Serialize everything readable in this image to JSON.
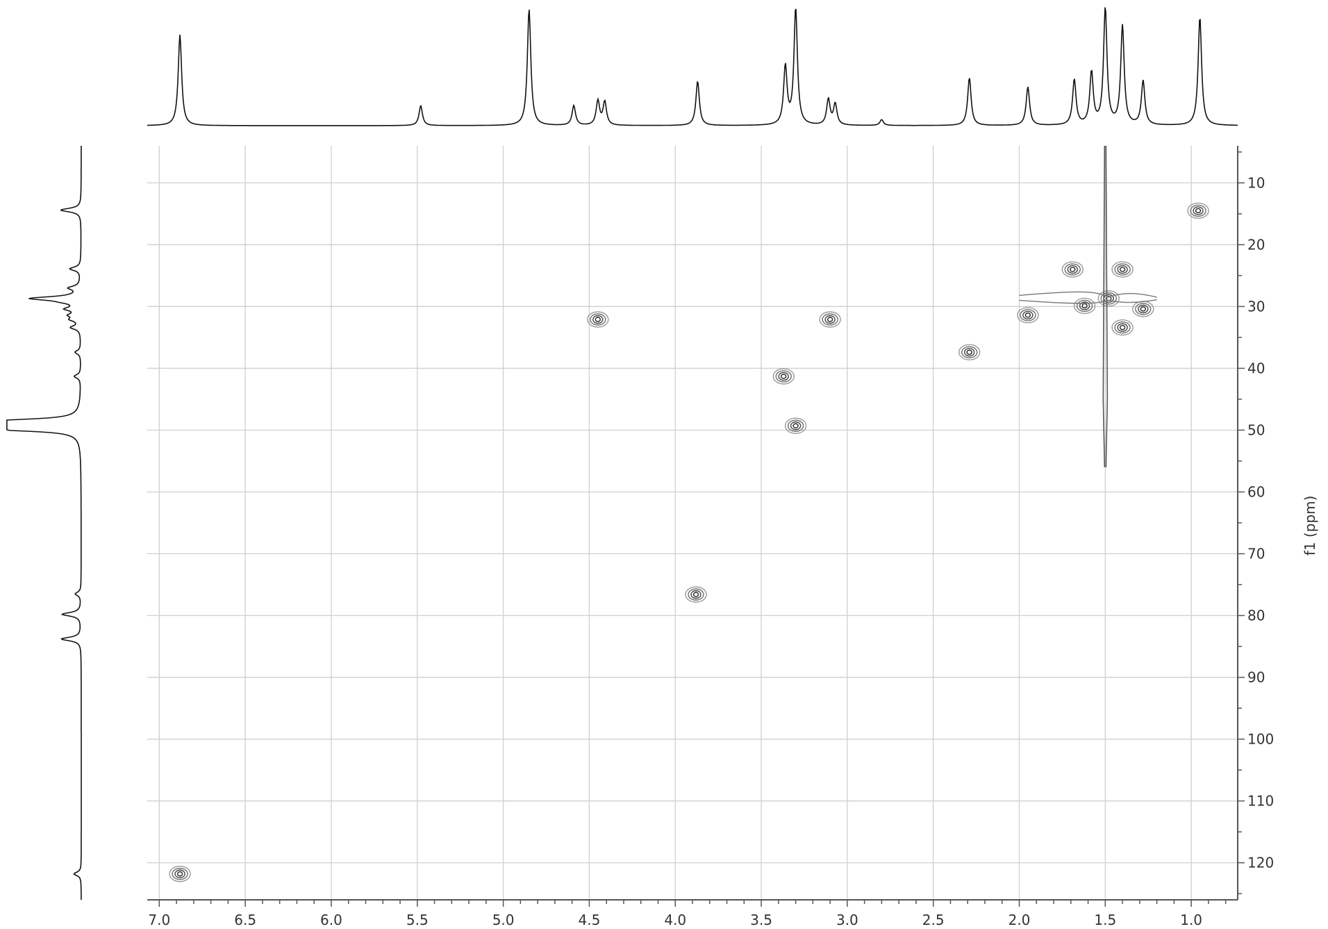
{
  "chart_data": {
    "type": "2D NMR contour (HSQC)",
    "xlabel": "",
    "ylabel": "f1 (ppm)",
    "x_axis": {
      "reversed": true,
      "range": [
        7.07,
        0.73
      ],
      "ticks": [
        7.0,
        6.5,
        6.0,
        5.5,
        5.0,
        4.5,
        4.0,
        3.5,
        3.0,
        2.5,
        2.0,
        1.5,
        1.0
      ],
      "tick_labels": [
        "7.0",
        "6.5",
        "6.0",
        "5.5",
        "5.0",
        "4.5",
        "4.0",
        "3.5",
        "3.0",
        "2.5",
        "2.0",
        "1.5",
        "1.0"
      ]
    },
    "y_axis": {
      "side": "right",
      "range": [
        4,
        126
      ],
      "ticks": [
        10,
        20,
        30,
        40,
        50,
        60,
        70,
        80,
        90,
        100,
        110,
        120
      ],
      "tick_labels": [
        "10",
        "20",
        "30",
        "40",
        "50",
        "60",
        "70",
        "80",
        "90",
        "100",
        "110",
        "120"
      ]
    },
    "grid": true,
    "cross_peaks": [
      {
        "h": 6.88,
        "c": 121.8
      },
      {
        "h": 4.45,
        "c": 32.1
      },
      {
        "h": 3.88,
        "c": 76.6
      },
      {
        "h": 3.37,
        "c": 41.3
      },
      {
        "h": 3.3,
        "c": 49.3
      },
      {
        "h": 3.1,
        "c": 32.1
      },
      {
        "h": 2.29,
        "c": 37.4
      },
      {
        "h": 1.95,
        "c": 31.4
      },
      {
        "h": 1.69,
        "c": 24.0
      },
      {
        "h": 1.62,
        "c": 29.9
      },
      {
        "h": 1.4,
        "c": 24.0
      },
      {
        "h": 1.4,
        "c": 33.4
      },
      {
        "h": 1.48,
        "c": 28.7
      },
      {
        "h": 1.28,
        "c": 30.4
      },
      {
        "h": 0.96,
        "c": 14.5
      }
    ],
    "proton_peaks": [
      {
        "ppm": 6.88,
        "height": 0.78
      },
      {
        "ppm": 5.48,
        "height": 0.17
      },
      {
        "ppm": 4.85,
        "height": 1.0
      },
      {
        "ppm": 4.59,
        "height": 0.17
      },
      {
        "ppm": 4.45,
        "height": 0.21
      },
      {
        "ppm": 4.41,
        "height": 0.2
      },
      {
        "ppm": 3.87,
        "height": 0.38
      },
      {
        "ppm": 3.36,
        "height": 0.5
      },
      {
        "ppm": 3.3,
        "height": 1.0
      },
      {
        "ppm": 3.11,
        "height": 0.22
      },
      {
        "ppm": 3.07,
        "height": 0.18
      },
      {
        "ppm": 2.8,
        "height": 0.05
      },
      {
        "ppm": 2.29,
        "height": 0.41
      },
      {
        "ppm": 1.95,
        "height": 0.33
      },
      {
        "ppm": 1.68,
        "height": 0.39
      },
      {
        "ppm": 1.58,
        "height": 0.45
      },
      {
        "ppm": 1.5,
        "height": 1.0
      },
      {
        "ppm": 1.4,
        "height": 0.85
      },
      {
        "ppm": 1.28,
        "height": 0.38
      },
      {
        "ppm": 0.95,
        "height": 0.93
      }
    ],
    "carbon_peaks": [
      {
        "ppm": 14.4,
        "height": 0.28
      },
      {
        "ppm": 23.9,
        "height": 0.15
      },
      {
        "ppm": 27.0,
        "height": 0.15
      },
      {
        "ppm": 28.7,
        "height": 0.67
      },
      {
        "ppm": 29.3,
        "height": 0.12
      },
      {
        "ppm": 30.4,
        "height": 0.18
      },
      {
        "ppm": 31.4,
        "height": 0.13
      },
      {
        "ppm": 32.1,
        "height": 0.12
      },
      {
        "ppm": 33.4,
        "height": 0.13
      },
      {
        "ppm": 37.4,
        "height": 0.08
      },
      {
        "ppm": 41.3,
        "height": 0.09
      },
      {
        "ppm": 48.5,
        "height": 0.95
      },
      {
        "ppm": 49.2,
        "height": 1.0
      },
      {
        "ppm": 49.9,
        "height": 0.95
      },
      {
        "ppm": 76.5,
        "height": 0.08
      },
      {
        "ppm": 79.8,
        "height": 0.26
      },
      {
        "ppm": 83.8,
        "height": 0.27
      },
      {
        "ppm": 121.8,
        "height": 0.1
      }
    ]
  }
}
